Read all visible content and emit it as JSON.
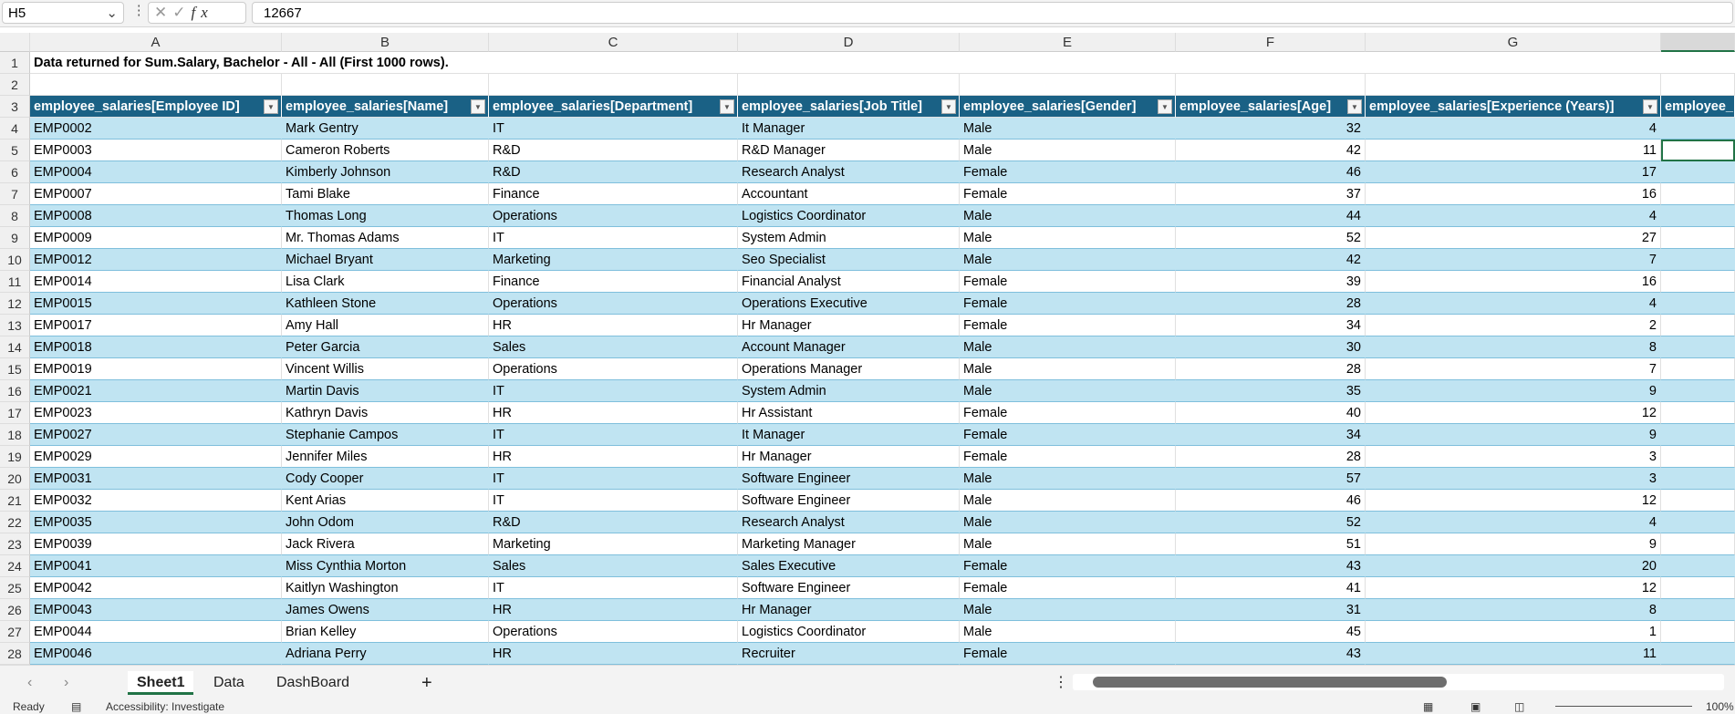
{
  "formula_bar": {
    "name_box": "H5",
    "formula": "12667",
    "fx": "fx"
  },
  "columns": [
    "A",
    "B",
    "C",
    "D",
    "E",
    "F",
    "G",
    ""
  ],
  "title_row": "Data returned for Sum.Salary, Bachelor - All - All (First 1000 rows).",
  "headers": [
    "employee_salaries[Employee ID]",
    "employee_salaries[Name]",
    "employee_salaries[Department]",
    "employee_salaries[Job Title]",
    "employee_salaries[Gender]",
    "employee_salaries[Age]",
    "employee_salaries[Experience (Years)]",
    "employee_"
  ],
  "rows": [
    [
      "EMP0002",
      "Mark Gentry",
      "IT",
      "It Manager",
      "Male",
      "32",
      "4"
    ],
    [
      "EMP0003",
      "Cameron Roberts",
      "R&D",
      "R&D Manager",
      "Male",
      "42",
      "11"
    ],
    [
      "EMP0004",
      "Kimberly Johnson",
      "R&D",
      "Research Analyst",
      "Female",
      "46",
      "17"
    ],
    [
      "EMP0007",
      "Tami Blake",
      "Finance",
      "Accountant",
      "Female",
      "37",
      "16"
    ],
    [
      "EMP0008",
      "Thomas Long",
      "Operations",
      "Logistics Coordinator",
      "Male",
      "44",
      "4"
    ],
    [
      "EMP0009",
      "Mr. Thomas Adams",
      "IT",
      "System Admin",
      "Male",
      "52",
      "27"
    ],
    [
      "EMP0012",
      "Michael Bryant",
      "Marketing",
      "Seo Specialist",
      "Male",
      "42",
      "7"
    ],
    [
      "EMP0014",
      "Lisa Clark",
      "Finance",
      "Financial Analyst",
      "Female",
      "39",
      "16"
    ],
    [
      "EMP0015",
      "Kathleen Stone",
      "Operations",
      "Operations Executive",
      "Female",
      "28",
      "4"
    ],
    [
      "EMP0017",
      "Amy Hall",
      "HR",
      "Hr Manager",
      "Female",
      "34",
      "2"
    ],
    [
      "EMP0018",
      "Peter Garcia",
      "Sales",
      "Account Manager",
      "Male",
      "30",
      "8"
    ],
    [
      "EMP0019",
      "Vincent Willis",
      "Operations",
      "Operations Manager",
      "Male",
      "28",
      "7"
    ],
    [
      "EMP0021",
      "Martin Davis",
      "IT",
      "System Admin",
      "Male",
      "35",
      "9"
    ],
    [
      "EMP0023",
      "Kathryn Davis",
      "HR",
      "Hr Assistant",
      "Female",
      "40",
      "12"
    ],
    [
      "EMP0027",
      "Stephanie Campos",
      "IT",
      "It Manager",
      "Female",
      "34",
      "9"
    ],
    [
      "EMP0029",
      "Jennifer Miles",
      "HR",
      "Hr Manager",
      "Female",
      "28",
      "3"
    ],
    [
      "EMP0031",
      "Cody Cooper",
      "IT",
      "Software Engineer",
      "Male",
      "57",
      "3"
    ],
    [
      "EMP0032",
      "Kent Arias",
      "IT",
      "Software Engineer",
      "Male",
      "46",
      "12"
    ],
    [
      "EMP0035",
      "John Odom",
      "R&D",
      "Research Analyst",
      "Male",
      "52",
      "4"
    ],
    [
      "EMP0039",
      "Jack Rivera",
      "Marketing",
      "Marketing Manager",
      "Male",
      "51",
      "9"
    ],
    [
      "EMP0041",
      "Miss Cynthia Morton",
      "Sales",
      "Sales Executive",
      "Female",
      "43",
      "20"
    ],
    [
      "EMP0042",
      "Kaitlyn Washington",
      "IT",
      "Software Engineer",
      "Female",
      "41",
      "12"
    ],
    [
      "EMP0043",
      "James Owens",
      "HR",
      "Hr Manager",
      "Male",
      "31",
      "8"
    ],
    [
      "EMP0044",
      "Brian Kelley",
      "Operations",
      "Logistics Coordinator",
      "Male",
      "45",
      "1"
    ],
    [
      "EMP0046",
      "Adriana Perry",
      "HR",
      "Recruiter",
      "Female",
      "43",
      "11"
    ]
  ],
  "sheet_tabs": [
    "Sheet1",
    "Data",
    "DashBoard"
  ],
  "add_sheet": "+",
  "status": {
    "ready": "Ready",
    "accessibility": "Accessibility: Investigate",
    "zoom": "100%"
  },
  "colors": {
    "header": "#1a6185",
    "band": "#c0e4f2",
    "accent": "#217346"
  }
}
